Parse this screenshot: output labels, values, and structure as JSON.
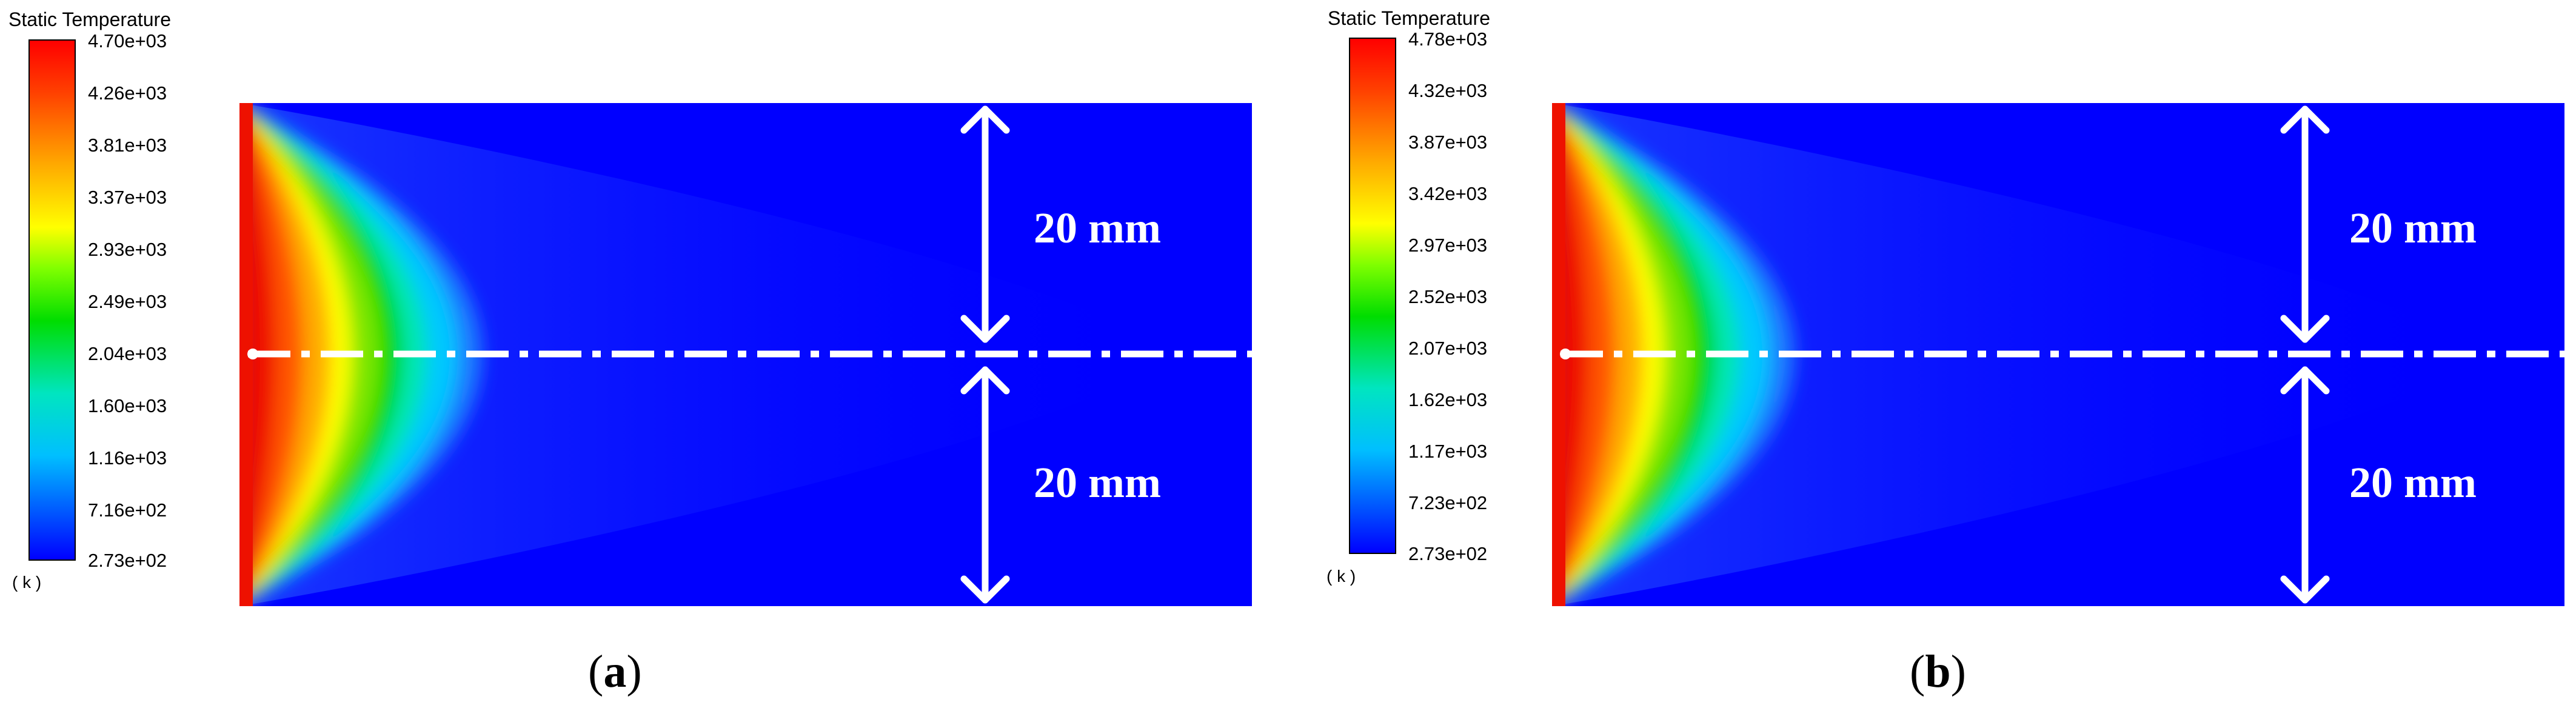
{
  "panels": [
    {
      "id": "a",
      "legend": {
        "title": "Static Temperature",
        "ticks": [
          "4.70e+03",
          "4.26e+03",
          "3.81e+03",
          "3.37e+03",
          "2.93e+03",
          "2.49e+03",
          "2.04e+03",
          "1.60e+03",
          "1.16e+03",
          "7.16e+02",
          "2.73e+02"
        ],
        "unit": "( k )"
      },
      "dim_upper": "20 mm",
      "dim_lower": "20 mm",
      "caption_open": "(",
      "caption_letter": "a",
      "caption_close": ")"
    },
    {
      "id": "b",
      "legend": {
        "title": "Static Temperature",
        "ticks": [
          "4.78e+03",
          "4.32e+03",
          "3.87e+03",
          "3.42e+03",
          "2.97e+03",
          "2.52e+03",
          "2.07e+03",
          "1.62e+03",
          "1.17e+03",
          "7.23e+02",
          "2.73e+02"
        ],
        "unit": "( k )"
      },
      "dim_upper": "20 mm",
      "dim_lower": "20 mm",
      "caption_open": "(",
      "caption_letter": "b",
      "caption_close": ")"
    }
  ],
  "colors": {
    "cold": "#0000ff",
    "hot": "#ff0000",
    "annotation": "#ffffff"
  }
}
